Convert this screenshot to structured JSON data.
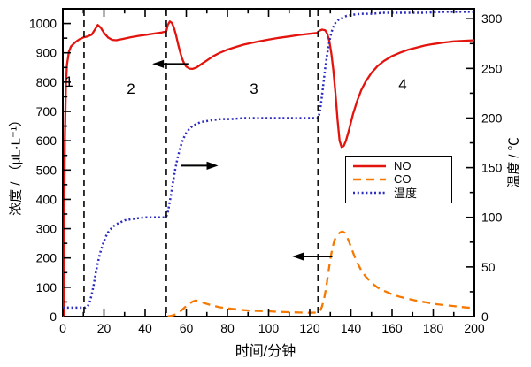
{
  "chart_data": {
    "type": "line",
    "title": "",
    "xlabel": "时间/分钟",
    "ylabel_left": "浓度 / （μL·L⁻¹）",
    "ylabel_right": "温度 / ℃",
    "xlim": [
      0,
      200
    ],
    "ylim_left": [
      0,
      1050
    ],
    "ylim_right": [
      0,
      310
    ],
    "x_ticks": [
      0,
      20,
      40,
      60,
      80,
      100,
      120,
      140,
      160,
      180,
      200
    ],
    "x_minor_step": 10,
    "y_ticks_left": [
      0,
      100,
      200,
      300,
      400,
      500,
      600,
      700,
      800,
      900,
      1000
    ],
    "y_left_minor_step": 50,
    "y_ticks_right": [
      0,
      50,
      100,
      150,
      200,
      250,
      300
    ],
    "y_right_minor_step": 25,
    "grid": false,
    "frame_color": "#000000",
    "background": "#ffffff",
    "phase_lines_x": [
      10.3,
      50.3,
      124
    ],
    "region_labels": [
      "1",
      "2",
      "3",
      "4"
    ],
    "legend": {
      "position": "right-center",
      "entries": [
        "NO",
        "CO",
        "温度"
      ]
    },
    "annotations": {
      "arrows": [
        {
          "x_from": 61,
          "x_to": 43.5,
          "y": 862,
          "axis": "left",
          "meaning": "NO reads left axis"
        },
        {
          "x_from": 57.5,
          "x_to": 75.5,
          "y": 152,
          "axis": "right",
          "meaning": "temperature reads right axis"
        },
        {
          "x_from": 131,
          "x_to": 111.5,
          "y": 205,
          "axis": "left",
          "meaning": "CO reads left axis"
        }
      ]
    },
    "series": [
      {
        "name": "NO",
        "axis": "left",
        "color": "#e3130d",
        "style": "solid",
        "points": [
          [
            0.5,
            0
          ],
          [
            0.7,
            300
          ],
          [
            1,
            600
          ],
          [
            1.5,
            790
          ],
          [
            2,
            860
          ],
          [
            3,
            905
          ],
          [
            4,
            922
          ],
          [
            6,
            936
          ],
          [
            8,
            946
          ],
          [
            10.3,
            953
          ],
          [
            12,
            956
          ],
          [
            14,
            962
          ],
          [
            15.5,
            978
          ],
          [
            17,
            995
          ],
          [
            18.5,
            985
          ],
          [
            20,
            968
          ],
          [
            22,
            952
          ],
          [
            24,
            944
          ],
          [
            26,
            943
          ],
          [
            29,
            947
          ],
          [
            33,
            953
          ],
          [
            37,
            958
          ],
          [
            41,
            962
          ],
          [
            45,
            966
          ],
          [
            48,
            969
          ],
          [
            50.3,
            973
          ],
          [
            51,
            995
          ],
          [
            52,
            1007
          ],
          [
            53,
            1002
          ],
          [
            54,
            985
          ],
          [
            55,
            960
          ],
          [
            56,
            930
          ],
          [
            57,
            903
          ],
          [
            58,
            880
          ],
          [
            59,
            863
          ],
          [
            60,
            853
          ],
          [
            61.5,
            846
          ],
          [
            63,
            845
          ],
          [
            65,
            850
          ],
          [
            67,
            860
          ],
          [
            70,
            874
          ],
          [
            73,
            888
          ],
          [
            76,
            899
          ],
          [
            80,
            911
          ],
          [
            84,
            920
          ],
          [
            88,
            928
          ],
          [
            92,
            934
          ],
          [
            96,
            940
          ],
          [
            100,
            945
          ],
          [
            105,
            951
          ],
          [
            110,
            956
          ],
          [
            115,
            961
          ],
          [
            120,
            965
          ],
          [
            124,
            968
          ],
          [
            124.5,
            975
          ],
          [
            126,
            979
          ],
          [
            127.5,
            977
          ],
          [
            128.5,
            965
          ],
          [
            129.5,
            940
          ],
          [
            130.5,
            898
          ],
          [
            131.5,
            840
          ],
          [
            132.5,
            760
          ],
          [
            133.5,
            672
          ],
          [
            134.5,
            600
          ],
          [
            135.5,
            578
          ],
          [
            136.5,
            582
          ],
          [
            137.5,
            598
          ],
          [
            139,
            635
          ],
          [
            141,
            690
          ],
          [
            143,
            735
          ],
          [
            145,
            772
          ],
          [
            147,
            800
          ],
          [
            150,
            832
          ],
          [
            153,
            855
          ],
          [
            156,
            872
          ],
          [
            160,
            889
          ],
          [
            164,
            901
          ],
          [
            168,
            911
          ],
          [
            172,
            918
          ],
          [
            176,
            925
          ],
          [
            180,
            930
          ],
          [
            185,
            935
          ],
          [
            190,
            939
          ],
          [
            195,
            941
          ],
          [
            200,
            943
          ]
        ]
      },
      {
        "name": "CO",
        "axis": "left",
        "color": "#f57900",
        "style": "dashed",
        "points": [
          [
            51,
            1
          ],
          [
            53,
            3
          ],
          [
            55,
            8
          ],
          [
            57,
            17
          ],
          [
            59,
            30
          ],
          [
            61,
            42
          ],
          [
            63,
            51
          ],
          [
            64.5,
            55
          ],
          [
            66,
            53
          ],
          [
            68,
            48
          ],
          [
            70,
            43
          ],
          [
            73,
            37
          ],
          [
            76,
            32
          ],
          [
            80,
            28
          ],
          [
            84,
            25
          ],
          [
            88,
            22
          ],
          [
            92,
            20
          ],
          [
            96,
            19
          ],
          [
            100,
            18
          ],
          [
            105,
            16
          ],
          [
            110,
            15
          ],
          [
            115,
            14
          ],
          [
            120,
            13
          ],
          [
            124,
            14
          ],
          [
            125,
            18
          ],
          [
            126,
            35
          ],
          [
            127,
            62
          ],
          [
            128,
            100
          ],
          [
            129,
            148
          ],
          [
            130,
            196
          ],
          [
            131,
            234
          ],
          [
            132,
            260
          ],
          [
            133,
            274
          ],
          [
            134,
            283
          ],
          [
            135,
            288
          ],
          [
            136,
            290
          ],
          [
            137,
            286
          ],
          [
            138,
            274
          ],
          [
            139,
            257
          ],
          [
            140,
            238
          ],
          [
            141.5,
            210
          ],
          [
            143,
            185
          ],
          [
            145,
            158
          ],
          [
            147,
            138
          ],
          [
            150,
            115
          ],
          [
            153,
            99
          ],
          [
            156,
            88
          ],
          [
            160,
            76
          ],
          [
            164,
            67
          ],
          [
            168,
            60
          ],
          [
            172,
            54
          ],
          [
            177,
            48
          ],
          [
            182,
            42
          ],
          [
            187,
            38
          ],
          [
            192,
            34
          ],
          [
            196,
            31
          ],
          [
            200,
            29
          ]
        ]
      },
      {
        "name": "温度",
        "axis": "right",
        "color": "#2b2bc4",
        "style": "dotted",
        "points": [
          [
            0,
            9
          ],
          [
            4,
            9
          ],
          [
            8,
            9
          ],
          [
            11,
            9
          ],
          [
            12,
            10
          ],
          [
            13,
            14
          ],
          [
            14,
            22
          ],
          [
            15,
            32
          ],
          [
            16,
            44
          ],
          [
            17,
            54
          ],
          [
            18,
            63
          ],
          [
            19,
            70
          ],
          [
            20,
            76
          ],
          [
            21,
            81
          ],
          [
            22,
            85
          ],
          [
            24,
            90
          ],
          [
            26,
            93
          ],
          [
            28,
            95
          ],
          [
            30,
            97
          ],
          [
            33,
            98
          ],
          [
            36,
            99
          ],
          [
            40,
            100
          ],
          [
            45,
            100
          ],
          [
            50,
            100
          ],
          [
            50.8,
            103
          ],
          [
            51.5,
            110
          ],
          [
            52.5,
            122
          ],
          [
            53.5,
            135
          ],
          [
            54.5,
            147
          ],
          [
            55.5,
            157
          ],
          [
            56.5,
            166
          ],
          [
            57.5,
            173
          ],
          [
            58.5,
            179
          ],
          [
            60,
            185
          ],
          [
            61.5,
            189
          ],
          [
            63,
            192
          ],
          [
            65,
            194
          ],
          [
            67,
            196
          ],
          [
            70,
            197
          ],
          [
            73,
            198
          ],
          [
            77,
            199
          ],
          [
            82,
            199
          ],
          [
            88,
            200
          ],
          [
            95,
            200
          ],
          [
            105,
            200
          ],
          [
            115,
            200
          ],
          [
            124,
            200
          ],
          [
            124.8,
            205
          ],
          [
            125.5,
            215
          ],
          [
            126.5,
            232
          ],
          [
            127.5,
            250
          ],
          [
            128.5,
            265
          ],
          [
            129.5,
            277
          ],
          [
            130.5,
            286
          ],
          [
            131.5,
            292
          ],
          [
            132.5,
            296
          ],
          [
            134,
            299
          ],
          [
            136,
            301
          ],
          [
            138,
            303
          ],
          [
            141,
            304
          ],
          [
            145,
            305
          ],
          [
            150,
            305
          ],
          [
            156,
            306
          ],
          [
            165,
            306
          ],
          [
            175,
            306
          ],
          [
            185,
            307
          ],
          [
            200,
            307
          ]
        ]
      }
    ]
  }
}
